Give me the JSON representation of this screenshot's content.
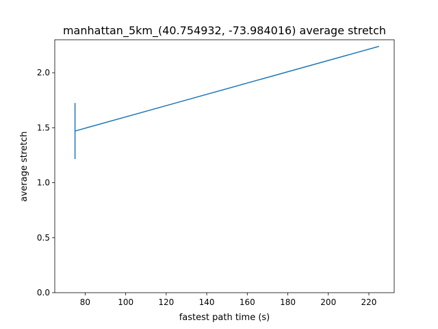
{
  "chart_data": {
    "type": "line",
    "title": "manhattan_5km_(40.754932, -73.984016) average stretch",
    "xlabel": "fastest path time (s)",
    "ylabel": "average stretch",
    "xlim": [
      65,
      232.5
    ],
    "ylim": [
      0,
      2.3
    ],
    "x_ticks": [
      80,
      100,
      120,
      140,
      160,
      180,
      200,
      220
    ],
    "y_ticks": [
      0.0,
      0.5,
      1.0,
      1.5,
      2.0
    ],
    "x_tick_labels": [
      "80",
      "100",
      "120",
      "140",
      "160",
      "180",
      "200",
      "220"
    ],
    "y_tick_labels": [
      "0.0",
      "0.5",
      "1.0",
      "1.5",
      "2.0"
    ],
    "grid": false,
    "legend": "none",
    "series": [
      {
        "color": "#1f77b4",
        "x": [
          75,
          225
        ],
        "y": [
          1.47,
          2.24
        ],
        "error": [
          0.255,
          0
        ]
      }
    ]
  }
}
